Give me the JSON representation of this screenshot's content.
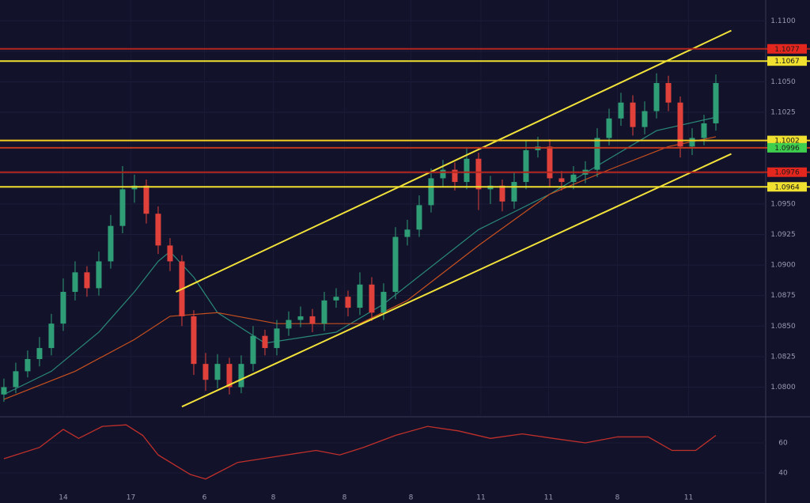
{
  "chart_data": {
    "type": "candlestick",
    "x": [
      0,
      1,
      2,
      3,
      4,
      5,
      6,
      7,
      8,
      9,
      10,
      11,
      12,
      13,
      14,
      15,
      16,
      17,
      18,
      19,
      20,
      21,
      22,
      23,
      24,
      25,
      26,
      27,
      28,
      29,
      30,
      31,
      32,
      33,
      34,
      35,
      36,
      37,
      38,
      39,
      40,
      41,
      42,
      43,
      44,
      45,
      46,
      47,
      48,
      49,
      50,
      51,
      52,
      53,
      54,
      55,
      56,
      57,
      58,
      59,
      60
    ],
    "open": [
      1.0794,
      1.08,
      1.0813,
      1.0823,
      1.0832,
      1.0852,
      1.0878,
      1.0894,
      1.0881,
      1.0903,
      1.0932,
      1.0962,
      1.0965,
      1.0942,
      1.0916,
      1.0903,
      1.0858,
      1.0819,
      1.0806,
      1.0819,
      1.08,
      1.0819,
      1.0842,
      1.0832,
      1.0848,
      1.0855,
      1.0858,
      1.0852,
      1.0871,
      1.0874,
      1.0865,
      1.0884,
      1.0861,
      1.0878,
      1.0923,
      1.0929,
      1.0949,
      1.0971,
      1.0978,
      1.0968,
      1.0987,
      1.0962,
      1.0965,
      1.0952,
      1.0968,
      1.0994,
      1.0997,
      1.0971,
      1.0968,
      1.0974,
      1.0978,
      1.1004,
      1.102,
      1.1033,
      1.1013,
      1.1026,
      1.1049,
      1.1033,
      1.0997,
      1.1004,
      1.1016
    ],
    "high": [
      1.0807,
      1.082,
      1.083,
      1.0841,
      1.086,
      1.0889,
      1.0903,
      1.0899,
      1.0911,
      1.0941,
      1.0981,
      1.0974,
      1.097,
      1.0948,
      1.0922,
      1.0908,
      1.0863,
      1.0828,
      1.0827,
      1.0824,
      1.0826,
      1.085,
      1.0847,
      1.0855,
      1.0862,
      1.0866,
      1.0864,
      1.0878,
      1.0881,
      1.0879,
      1.0894,
      1.089,
      1.0885,
      1.0931,
      1.0937,
      1.0957,
      1.0979,
      1.0986,
      1.0984,
      1.0996,
      1.0992,
      1.0973,
      1.097,
      1.0976,
      1.1002,
      1.1005,
      1.1003,
      1.0977,
      1.0981,
      1.0985,
      1.1012,
      1.1028,
      1.1041,
      1.1039,
      1.1034,
      1.1057,
      1.1055,
      1.1038,
      1.1012,
      1.1023,
      1.1056
    ],
    "low": [
      1.0788,
      1.0795,
      1.0808,
      1.0817,
      1.0826,
      1.0846,
      1.0871,
      1.0874,
      1.0875,
      1.0897,
      1.0926,
      1.0951,
      1.0934,
      1.0909,
      1.0895,
      1.085,
      1.081,
      1.0797,
      1.0799,
      1.0794,
      1.0795,
      1.0813,
      1.0826,
      1.0826,
      1.0842,
      1.0849,
      1.0845,
      1.0846,
      1.0865,
      1.0858,
      1.0859,
      1.0854,
      1.0855,
      1.0872,
      1.0916,
      1.0923,
      1.0943,
      1.0964,
      1.0961,
      1.0962,
      1.0945,
      1.095,
      1.0944,
      1.0946,
      1.0962,
      1.0988,
      1.0964,
      1.0961,
      1.0962,
      1.0967,
      1.0972,
      1.0998,
      1.1014,
      1.1006,
      1.1007,
      1.102,
      1.1026,
      1.0988,
      1.099,
      1.0998,
      1.101
    ],
    "close": [
      1.08,
      1.0813,
      1.0823,
      1.0832,
      1.0852,
      1.0878,
      1.0894,
      1.0881,
      1.0903,
      1.0932,
      1.0962,
      1.0965,
      1.0942,
      1.0916,
      1.0903,
      1.0858,
      1.0819,
      1.0806,
      1.0819,
      1.08,
      1.0819,
      1.0842,
      1.0832,
      1.0848,
      1.0855,
      1.0858,
      1.0852,
      1.0871,
      1.0874,
      1.0865,
      1.0884,
      1.0861,
      1.0878,
      1.0923,
      1.0929,
      1.0949,
      1.0971,
      1.0978,
      1.0968,
      1.0987,
      1.0962,
      1.0965,
      1.0952,
      1.0968,
      1.0994,
      1.0997,
      1.0971,
      1.0968,
      1.0974,
      1.0978,
      1.1004,
      1.102,
      1.1033,
      1.1013,
      1.1026,
      1.1049,
      1.1033,
      1.0997,
      1.1004,
      1.1016,
      1.1049
    ],
    "up_color": "#2f9e77",
    "down_color": "#e0413a",
    "overlays": [
      {
        "color": "#2a8a78",
        "x": [
          0,
          4,
          8,
          11,
          13,
          14,
          16,
          18,
          22,
          28,
          32,
          40,
          46,
          51,
          55,
          60
        ],
        "values": [
          1.0794,
          1.0813,
          1.0845,
          1.0878,
          1.0903,
          1.0911,
          1.089,
          1.0861,
          1.0836,
          1.0845,
          1.0868,
          1.0929,
          1.0958,
          1.0987,
          1.101,
          1.1021
        ]
      },
      {
        "color": "#c8501e",
        "x": [
          0,
          6,
          11,
          14,
          18,
          23,
          30,
          34,
          40,
          46,
          51,
          56,
          60
        ],
        "values": [
          1.079,
          1.0813,
          1.0839,
          1.0858,
          1.0861,
          1.0852,
          1.0852,
          1.0871,
          1.0916,
          1.0958,
          1.0978,
          1.0997,
          1.1005
        ]
      }
    ],
    "trendlines": [
      {
        "color": "#f2e23a",
        "x": [
          14.5,
          61.3
        ],
        "values": [
          1.0878,
          1.1092
        ]
      },
      {
        "color": "#f2e23a",
        "x": [
          15,
          61.3
        ],
        "values": [
          1.0784,
          1.0991
        ]
      }
    ],
    "levels": [
      {
        "value": 1.1077,
        "color": "#b3261e",
        "label_color": "#e3261e"
      },
      {
        "value": 1.1067,
        "color": "#f0e030",
        "label_color": "#f0e030"
      },
      {
        "value": 1.1002,
        "color": "#f5d020",
        "label_color": "#f0e030"
      },
      {
        "value": 1.0996,
        "color": "#c0381e",
        "label_color": "#3fcf4f"
      },
      {
        "value": 1.0976,
        "color": "#b3261e",
        "label_color": "#e3261e"
      },
      {
        "value": 1.0964,
        "color": "#f0e030",
        "label_color": "#f0e030"
      }
    ],
    "xlim": [
      -0.33,
      64.2
    ],
    "ylim": [
      1.0777,
      1.1117
    ],
    "yticks": [
      {
        "value": 1.08,
        "label": "1.0800"
      },
      {
        "value": 1.0825,
        "label": "1.0825"
      },
      {
        "value": 1.085,
        "label": "1.0850"
      },
      {
        "value": 1.0875,
        "label": "1.0875"
      },
      {
        "value": 1.09,
        "label": "1.0900"
      },
      {
        "value": 1.0925,
        "label": "1.0925"
      },
      {
        "value": 1.095,
        "label": "1.0950"
      },
      {
        "value": 1.0975,
        "label": "1.0975"
      },
      {
        "value": 1.1,
        "label": "1.1000"
      },
      {
        "value": 1.1025,
        "label": "1.1025"
      },
      {
        "value": 1.105,
        "label": "1.1050"
      },
      {
        "value": 1.1075,
        "label": "1.1075"
      },
      {
        "value": 1.11,
        "label": "1.1100"
      }
    ],
    "xticks": [
      {
        "value": 5,
        "label": "14"
      },
      {
        "value": 10.7,
        "label": "17"
      },
      {
        "value": 16.9,
        "label": "6"
      },
      {
        "value": 22.7,
        "label": "8"
      },
      {
        "value": 28.7,
        "label": "8"
      },
      {
        "value": 34.3,
        "label": "8"
      },
      {
        "value": 40.2,
        "label": "11"
      },
      {
        "value": 45.9,
        "label": "11"
      },
      {
        "value": 51.7,
        "label": "8"
      },
      {
        "value": 57.7,
        "label": "11"
      }
    ],
    "grid": true,
    "indicator": {
      "color": "#c0302a",
      "x": [
        0,
        3,
        5,
        6.3,
        8.3,
        10.3,
        11.7,
        13,
        15.7,
        17,
        19.7,
        23,
        26.3,
        28.3,
        30.3,
        33,
        35.7,
        38.3,
        41,
        43.7,
        46.3,
        49,
        51.7,
        54.3,
        56.3,
        58.3,
        60
      ],
      "values": [
        49.5,
        57,
        69,
        63,
        71,
        72,
        65,
        52,
        39,
        36,
        47,
        51,
        55,
        52,
        57,
        65,
        71,
        68,
        63,
        66,
        63,
        60,
        64,
        64,
        55,
        55,
        65
      ],
      "ylim": [
        25.8,
        75.8
      ],
      "yticks": [
        60,
        40
      ]
    }
  }
}
